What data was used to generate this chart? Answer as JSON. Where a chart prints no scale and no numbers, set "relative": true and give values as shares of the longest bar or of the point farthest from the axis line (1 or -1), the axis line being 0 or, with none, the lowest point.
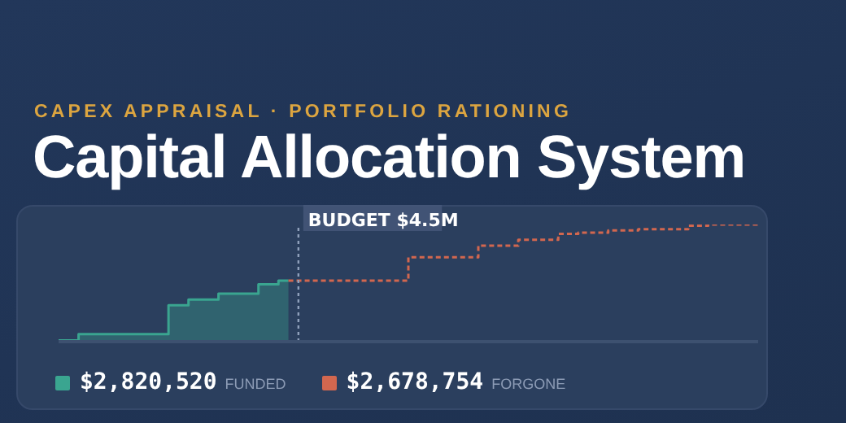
{
  "chart_data": {
    "type": "area",
    "title": "Capital Allocation System",
    "subtitle": "CAPEX APPRAISAL · PORTFOLIO RATIONING",
    "relative": true,
    "grid": false,
    "legend": "bottom",
    "marker": "none",
    "categories": [
      null,
      null,
      null,
      null,
      null,
      null,
      null,
      null,
      null,
      null,
      null,
      null,
      null,
      null,
      null,
      null,
      null,
      null,
      null,
      null,
      null,
      null,
      null,
      null,
      null,
      null,
      null,
      null,
      null,
      null,
      null,
      null,
      null,
      null,
      null,
      null,
      null,
      null,
      null,
      null,
      null,
      null,
      null,
      null,
      null,
      null,
      null,
      null,
      null,
      null,
      null,
      null,
      null,
      null,
      null,
      null,
      null,
      null,
      null,
      null,
      null,
      null,
      null,
      null,
      null,
      null,
      null,
      null,
      null,
      null,
      null
    ],
    "series": [
      {
        "name": "$2,820,520 FUNDED",
        "color": "#3aa590",
        "values": [
          0.01,
          0.01,
          0.065,
          0.065,
          0.065,
          0.065,
          0.065,
          0.065,
          0.065,
          0.065,
          0.065,
          0.31,
          0.31,
          0.36,
          0.36,
          0.36,
          0.41,
          0.41,
          0.41,
          0.41,
          0.49,
          0.49,
          0.52,
          0.52,
          null,
          null,
          null,
          null,
          null,
          null,
          null,
          null,
          null,
          null,
          null,
          null,
          null,
          null,
          null,
          null,
          null,
          null,
          null,
          null,
          null,
          null,
          null,
          null,
          null,
          null,
          null,
          null,
          null,
          null,
          null,
          null,
          null,
          null,
          null,
          null,
          null,
          null,
          null,
          null,
          null,
          null,
          null,
          null,
          null,
          null,
          null
        ]
      },
      {
        "name": "$2,678,754 FORGONE",
        "type": "step",
        "color": "#d2674f",
        "line_style": "dashed",
        "values": [
          null,
          null,
          null,
          null,
          null,
          null,
          null,
          null,
          null,
          null,
          null,
          null,
          null,
          null,
          null,
          null,
          null,
          null,
          null,
          null,
          null,
          null,
          null,
          0.52,
          0.52,
          0.52,
          0.52,
          0.52,
          0.52,
          0.52,
          0.52,
          0.52,
          0.52,
          0.52,
          0.52,
          0.72,
          0.72,
          0.72,
          0.72,
          0.72,
          0.72,
          0.72,
          0.82,
          0.82,
          0.82,
          0.82,
          0.87,
          0.87,
          0.87,
          0.87,
          0.92,
          0.92,
          0.93,
          0.93,
          0.93,
          0.95,
          0.95,
          0.95,
          0.96,
          0.96,
          0.96,
          0.96,
          0.96,
          0.99,
          0.99,
          1,
          1,
          1,
          1,
          1,
          1
        ]
      }
    ],
    "annotations": [
      "BUDGET $4.5M"
    ]
  }
}
